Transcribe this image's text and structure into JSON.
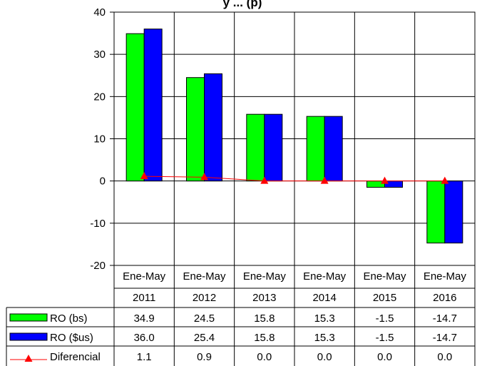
{
  "chart_data": {
    "type": "bar",
    "title": "y ... (p)",
    "categories": [
      {
        "line1": "Ene-May",
        "line2": "2011"
      },
      {
        "line1": "Ene-May",
        "line2": "2012"
      },
      {
        "line1": "Ene-May",
        "line2": "2013"
      },
      {
        "line1": "Ene-May",
        "line2": "2014"
      },
      {
        "line1": "Ene-May",
        "line2": "2015"
      },
      {
        "line1": "Ene-May",
        "line2": "2016"
      }
    ],
    "series": [
      {
        "name": "RO (bs)",
        "type": "bar",
        "color": "#00ff00",
        "values": [
          34.9,
          24.5,
          15.8,
          15.3,
          -1.5,
          -14.7
        ],
        "labels": [
          "34.9",
          "24.5",
          "15.8",
          "15.3",
          "-1.5",
          "-14.7"
        ]
      },
      {
        "name": "RO ($us)",
        "type": "bar",
        "color": "#0000ff",
        "values": [
          36.0,
          25.4,
          15.8,
          15.3,
          -1.5,
          -14.7
        ],
        "labels": [
          "36.0",
          "25.4",
          "15.8",
          "15.3",
          "-1.5",
          "-14.7"
        ]
      },
      {
        "name": "Diferencial",
        "type": "line",
        "color": "#ff0000",
        "marker": "triangle",
        "values": [
          1.1,
          0.9,
          0.0,
          0.0,
          0.0,
          0.0
        ],
        "labels": [
          "1.1",
          "0.9",
          "0.0",
          "0.0",
          "0.0",
          "0.0"
        ]
      }
    ],
    "ylim": [
      -20,
      40
    ],
    "yticks": [
      "40",
      "30",
      "20",
      "10",
      "0",
      "-10",
      "-20"
    ],
    "grid": true,
    "legend": "data-table-left"
  }
}
